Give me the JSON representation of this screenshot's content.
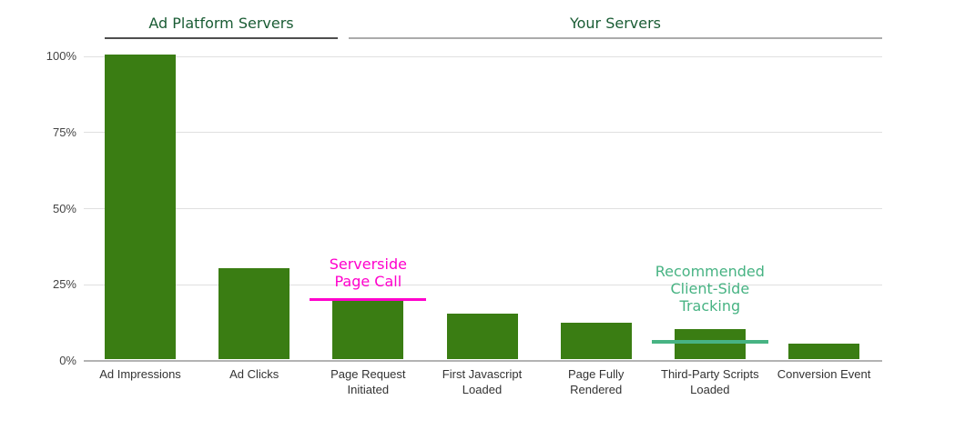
{
  "chart_data": {
    "type": "bar",
    "title": "",
    "categories": [
      "Ad Impressions",
      "Ad Clicks",
      "Page Request Initiated",
      "First Javascript Loaded",
      "Page Fully Rendered",
      "Third-Party Scripts Loaded",
      "Conversion Event"
    ],
    "values": [
      100,
      30,
      20,
      15,
      12,
      10,
      5
    ],
    "xlabel": "",
    "ylabel": "",
    "ylim": [
      0,
      100
    ],
    "yticks": [
      0,
      25,
      50,
      75,
      100
    ],
    "ytick_labels": [
      "0%",
      "25%",
      "50%",
      "75%",
      "100%"
    ],
    "grid": true,
    "legend": "none",
    "section_headers": [
      {
        "label": "Ad Platform Servers",
        "categories": [
          "Ad Impressions",
          "Ad Clicks"
        ],
        "text_color": "#1A5C34",
        "underline_color": "#4E4E4E"
      },
      {
        "label": "Your Servers",
        "categories": [
          "Page Request Initiated",
          "First Javascript Loaded",
          "Page Fully Rendered",
          "Third-Party Scripts Loaded",
          "Conversion Event"
        ],
        "text_color": "#1A5C34",
        "underline_color": "#ABABAB"
      }
    ],
    "annotations": [
      {
        "text": "Serverside\nPage Call",
        "color": "#FF00CC",
        "line_value": 20,
        "category": "Page Request Initiated",
        "category_index": 2
      },
      {
        "text": "Recommended\nClient-Side\nTracking",
        "color": "#47B383",
        "line_value": 6,
        "category": "Third-Party Scripts Loaded",
        "category_index": 5
      }
    ],
    "colors": {
      "bar": "#3A7D13",
      "gridline": "#E0E0E0",
      "baseline": "#B3B3B3",
      "y_axis_label": "#444444",
      "x_axis_label": "#333333",
      "header_text": "#1A5C34"
    }
  }
}
